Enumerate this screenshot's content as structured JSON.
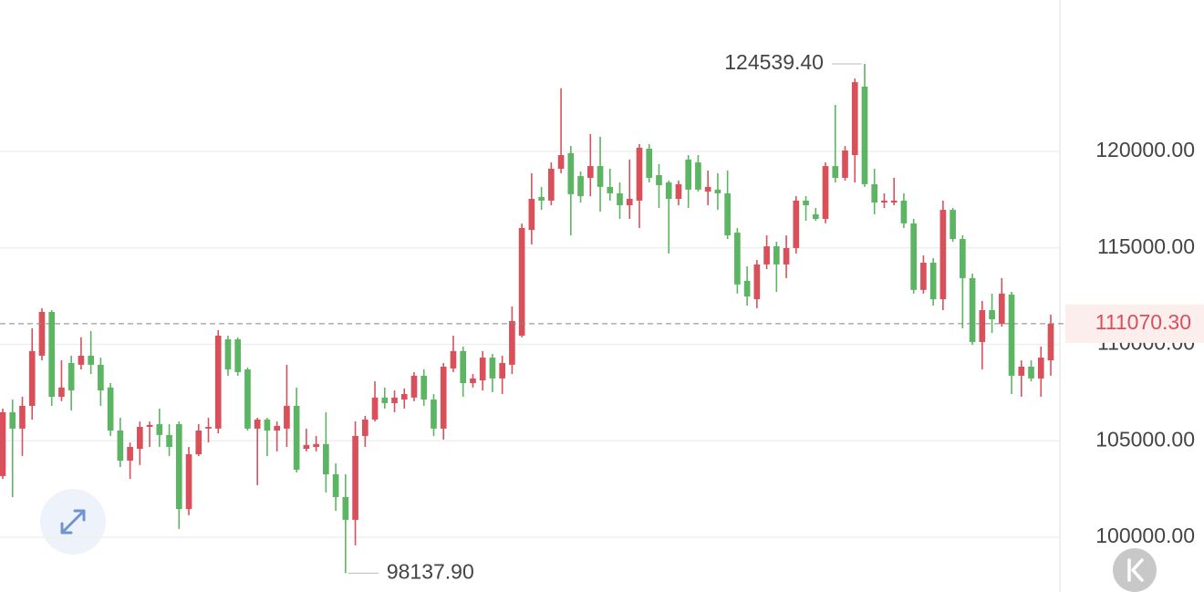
{
  "chart_data": {
    "type": "candlestick",
    "open": [
      103170,
      106480,
      105630,
      106810,
      109410,
      111680,
      107280,
      109030,
      108940,
      109410,
      108940,
      107760,
      105530,
      103970,
      104580,
      105720,
      105860,
      105300,
      105860,
      101460,
      104300,
      105630,
      105630,
      110260,
      110260,
      108700,
      105630,
      106100,
      105530,
      105630,
      106810,
      104580,
      104680,
      104830,
      103260,
      102080,
      100900,
      105250,
      106100,
      107240,
      106950,
      107140,
      107240,
      108370,
      107140,
      105630,
      108750,
      109650,
      107990,
      108130,
      109310,
      108230,
      108940,
      110450,
      115930,
      117640,
      117450,
      119100,
      119910,
      118720,
      118630,
      119240,
      118160,
      117830,
      117210,
      117450,
      120140,
      118770,
      118390,
      117540,
      119580,
      119430,
      117920,
      118020,
      117830,
      115790,
      113290,
      112340,
      114140,
      115080,
      114140,
      114990,
      117450,
      116740,
      116500,
      119240,
      118630,
      119810,
      123360,
      118300,
      117350,
      117350,
      117450,
      116270,
      112820,
      114230,
      112340,
      116970,
      115460,
      113430,
      110120,
      111770,
      111060,
      112580,
      108370,
      108840,
      108230,
      109170
    ],
    "high": [
      106670,
      107140,
      107280,
      110830,
      111870,
      111770,
      109170,
      109410,
      110360,
      110690,
      109310,
      107990,
      106190,
      104910,
      106000,
      106000,
      106670,
      105860,
      106000,
      104680,
      105860,
      106190,
      110740,
      110450,
      110360,
      108790,
      106190,
      106190,
      106000,
      108940,
      107760,
      105630,
      105250,
      106480,
      103830,
      103260,
      106000,
      106290,
      108080,
      107760,
      107610,
      107710,
      108560,
      108700,
      107420,
      109030,
      110450,
      109880,
      108460,
      109650,
      109500,
      109410,
      111960,
      116260,
      118870,
      118160,
      119430,
      123270,
      120280,
      118960,
      120900,
      120760,
      119100,
      118390,
      119580,
      120380,
      120380,
      119340,
      118490,
      118490,
      119810,
      119810,
      119010,
      118870,
      119010,
      116030,
      114040,
      114370,
      115650,
      115320,
      115650,
      117680,
      117680,
      117070,
      119430,
      122410,
      120280,
      123780,
      124539.4,
      119100,
      117830,
      118630,
      117830,
      116500,
      114610,
      114470,
      117450,
      117070,
      115650,
      113660,
      112250,
      112630,
      113430,
      112720,
      109170,
      109170,
      109880,
      111540
    ],
    "low": [
      103020,
      102080,
      104210,
      106100,
      109170,
      106810,
      107050,
      106570,
      108700,
      108460,
      106810,
      105250,
      103640,
      103020,
      103740,
      104680,
      104680,
      104210,
      100430,
      101140,
      104210,
      104920,
      105390,
      108370,
      108370,
      105530,
      102700,
      104210,
      104450,
      104680,
      103360,
      104450,
      104450,
      102320,
      101370,
      98137.9,
      99580,
      104680,
      106000,
      106670,
      106480,
      106670,
      107050,
      106810,
      105250,
      105060,
      108560,
      107280,
      107760,
      107610,
      107520,
      107420,
      108460,
      110360,
      115180,
      116970,
      117210,
      118870,
      115650,
      117350,
      117680,
      116880,
      117450,
      116500,
      116500,
      116030,
      118390,
      117070,
      114710,
      117210,
      117070,
      117920,
      117210,
      116970,
      115460,
      112630,
      112010,
      111870,
      113900,
      112720,
      113430,
      114710,
      116410,
      116410,
      116270,
      118390,
      118490,
      118390,
      118160,
      116740,
      117070,
      117210,
      116030,
      112630,
      112630,
      112010,
      111770,
      115320,
      110830,
      109970,
      108700,
      110590,
      110920,
      107420,
      107280,
      108080,
      107280,
      108370
    ],
    "close": [
      106480,
      105630,
      106810,
      109650,
      111680,
      107280,
      107760,
      107610,
      109410,
      108940,
      107610,
      105530,
      103970,
      104680,
      105720,
      105820,
      105300,
      104680,
      101460,
      104300,
      105530,
      105720,
      110450,
      108700,
      108560,
      105630,
      106100,
      105530,
      105770,
      106810,
      103500,
      104780,
      104830,
      103260,
      102080,
      100900,
      105250,
      106100,
      107240,
      106950,
      107240,
      107420,
      108370,
      107140,
      105630,
      108840,
      109650,
      107990,
      108230,
      109310,
      108230,
      109030,
      111210,
      116030,
      117540,
      117450,
      119100,
      119810,
      117780,
      117680,
      119240,
      118160,
      117830,
      117210,
      117540,
      120190,
      118630,
      118250,
      117540,
      118300,
      118020,
      118020,
      118160,
      117830,
      115650,
      113100,
      112480,
      114140,
      115080,
      114140,
      114990,
      117450,
      117210,
      116500,
      119240,
      118630,
      120050,
      123590,
      118300,
      117350,
      117450,
      117450,
      116270,
      112820,
      114230,
      112340,
      116970,
      115460,
      113430,
      110120,
      111770,
      111300,
      112630,
      108370,
      108840,
      108230,
      109310,
      111070.3
    ],
    "up_color": "#d9505b",
    "down_color": "#5cb562",
    "ylim": [
      97160,
      127850
    ],
    "yticks": [
      {
        "value": 100000,
        "label": "100000.00"
      },
      {
        "value": 105000,
        "label": "105000.00"
      },
      {
        "value": 110000,
        "label": "110000.00"
      },
      {
        "value": 115000,
        "label": "115000.00"
      },
      {
        "value": 120000,
        "label": "120000.00"
      }
    ],
    "grid": true,
    "high_label": {
      "value": 124539.4,
      "label": "124539.40"
    },
    "low_label": {
      "value": 98137.9,
      "label": "98137.90"
    },
    "last_label": {
      "value": 111070.3,
      "label": "111070.30"
    }
  }
}
